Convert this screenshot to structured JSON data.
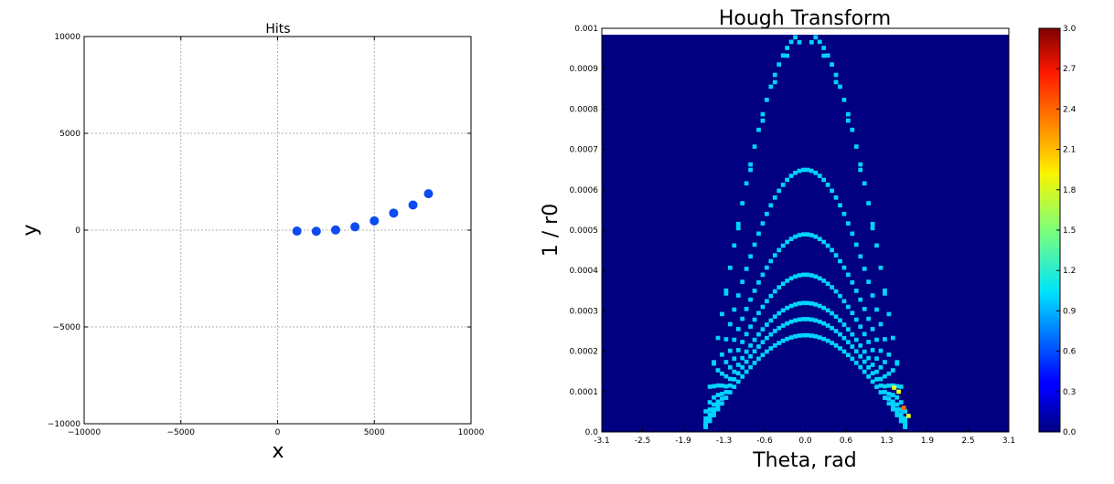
{
  "chart_data": [
    {
      "type": "scatter",
      "title": "Hits",
      "xlabel": "x",
      "ylabel": "y",
      "xlim": [
        -10000,
        10000
      ],
      "ylim": [
        -10000,
        10000
      ],
      "grid": true,
      "x_ticks": [
        -10000,
        -5000,
        0,
        5000,
        10000
      ],
      "y_ticks": [
        -10000,
        -5000,
        0,
        5000,
        10000
      ],
      "x_tick_labels": [
        "−10000",
        "−5000",
        "0",
        "5000",
        "10000"
      ],
      "y_tick_labels": [
        "−10000",
        "−5000",
        "0",
        "5000",
        "10000"
      ],
      "point_color": "#0b4bef",
      "series": [
        {
          "x": [
            1000,
            2000,
            3000,
            4000,
            5000,
            6000,
            7000,
            7800
          ],
          "y": [
            -50,
            -60,
            10,
            170,
            480,
            880,
            1300,
            1880
          ]
        }
      ]
    },
    {
      "type": "heatmap",
      "title": "Hough Transform",
      "xlabel": "Theta, rad",
      "ylabel": "1 / r0",
      "xlim": [
        -3.1,
        3.1
      ],
      "ylim": [
        0.0,
        0.001
      ],
      "x_tick_labels": [
        "-3.1",
        "-2.5",
        "-1.9",
        "-1.3",
        "-0.6",
        "0.0",
        "0.6",
        "1.3",
        "1.9",
        "2.5",
        "3.1"
      ],
      "y_ticks": [
        0.0,
        0.0001,
        0.0002,
        0.0003,
        0.0004,
        0.0005,
        0.0006,
        0.0007,
        0.0008,
        0.0009,
        0.001
      ],
      "y_tick_labels": [
        "0.0",
        "0.0001",
        "0.0002",
        "0.0003",
        "0.0004",
        "0.0005",
        "0.0006",
        "0.0007",
        "0.0008",
        "0.0009",
        "0.001"
      ],
      "colormap": "jet",
      "colorbar": {
        "range": [
          0.0,
          3.0
        ],
        "tick_labels": [
          "0.0",
          "0.3",
          "0.6",
          "0.9",
          "1.2",
          "1.5",
          "1.8",
          "2.1",
          "2.4",
          "2.7",
          "3.0"
        ]
      },
      "background_value": 0,
      "curves": [
        {
          "radius": 1000,
          "peak": 0.00099,
          "value": 1,
          "step": 1
        },
        {
          "radius": 1000,
          "peak": 0.00097,
          "value": 1,
          "step": 3
        },
        {
          "radius": 1500,
          "peak": 0.00065,
          "value": 1,
          "step": 1
        },
        {
          "radius": 2000,
          "peak": 0.00049,
          "value": 1,
          "step": 1
        },
        {
          "radius": 2500,
          "peak": 0.00039,
          "value": 1,
          "step": 1
        },
        {
          "radius": 3000,
          "peak": 0.00032,
          "value": 1,
          "step": 1
        },
        {
          "radius": 3500,
          "peak": 0.00028,
          "value": 1,
          "step": 1
        },
        {
          "radius": 4000,
          "peak": 0.00024,
          "value": 1,
          "step": 1
        }
      ],
      "hot_cells": [
        {
          "theta": 1.35,
          "r": 0.00011,
          "value": 1.8
        },
        {
          "theta": 1.42,
          "r": 0.0001,
          "value": 1.8
        },
        {
          "theta": 1.5,
          "r": 6e-05,
          "value": 2.3
        },
        {
          "theta": 1.57,
          "r": 4e-05,
          "value": 1.8
        }
      ]
    }
  ]
}
